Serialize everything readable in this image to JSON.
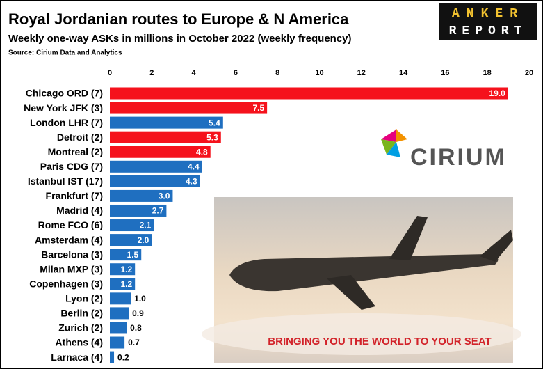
{
  "chart_data": {
    "type": "barh",
    "title": "Royal Jordanian routes to Europe & N America",
    "subtitle": "Weekly one-way ASKs in millions in October 2022 (weekly frequency)",
    "source": "Source: Cirium Data and Analytics",
    "annotations": [
      "ANKER",
      "REPORT",
      "CIRIUM",
      "BRINGING YOU THE WORLD TO YOUR SEAT"
    ],
    "categories": [
      "Chicago ORD (7)",
      "New York JFK (3)",
      "London LHR (7)",
      "Detroit (2)",
      "Montreal (2)",
      "Paris CDG (7)",
      "Istanbul IST (17)",
      "Frankfurt (7)",
      "Madrid (4)",
      "Rome FCO (6)",
      "Amsterdam (4)",
      "Barcelona (3)",
      "Milan MXP (3)",
      "Copenhagen (3)",
      "Lyon (2)",
      "Berlin (2)",
      "Zurich (2)",
      "Athens (4)",
      "Larnaca (4)"
    ],
    "values": [
      19,
      7.5,
      5.4,
      5.3,
      4.8,
      4.4,
      4.3,
      3,
      2.7,
      2.1,
      2,
      1.5,
      1.2,
      1.2,
      1,
      0.9,
      0.8,
      0.7,
      0.2
    ],
    "value_labels": [
      "19.0",
      "7.5",
      "5.4",
      "5.3",
      "4.8",
      "4.4",
      "4.3",
      "3.0",
      "2.7",
      "2.1",
      "2.0",
      "1.5",
      "1.2",
      "1.2",
      "1.0",
      "0.9",
      "0.8",
      "0.7",
      "0.2"
    ],
    "colors": [
      "#f5121c",
      "#f5121c",
      "#1f6fc0",
      "#f5121c",
      "#f5121c",
      "#1f6fc0",
      "#1f6fc0",
      "#1f6fc0",
      "#1f6fc0",
      "#1f6fc0",
      "#1f6fc0",
      "#1f6fc0",
      "#1f6fc0",
      "#1f6fc0",
      "#1f6fc0",
      "#1f6fc0",
      "#1f6fc0",
      "#1f6fc0",
      "#1f6fc0"
    ],
    "xlim": [
      0,
      20
    ],
    "xticks": [
      0,
      2,
      4,
      6,
      8,
      10,
      12,
      14,
      16,
      18,
      20
    ],
    "grid": false
  }
}
